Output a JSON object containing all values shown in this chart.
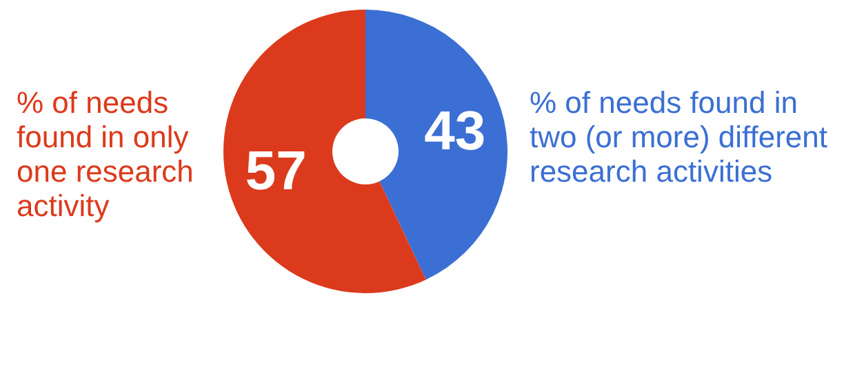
{
  "chart_data": {
    "type": "donut",
    "categories": [
      "% of needs found in two (or more) different research activities",
      "% of needs found in only one research activity"
    ],
    "values": [
      43,
      57
    ],
    "colors": [
      "#3b6fd3",
      "#dc3a1c"
    ],
    "data_labels": true
  }
}
